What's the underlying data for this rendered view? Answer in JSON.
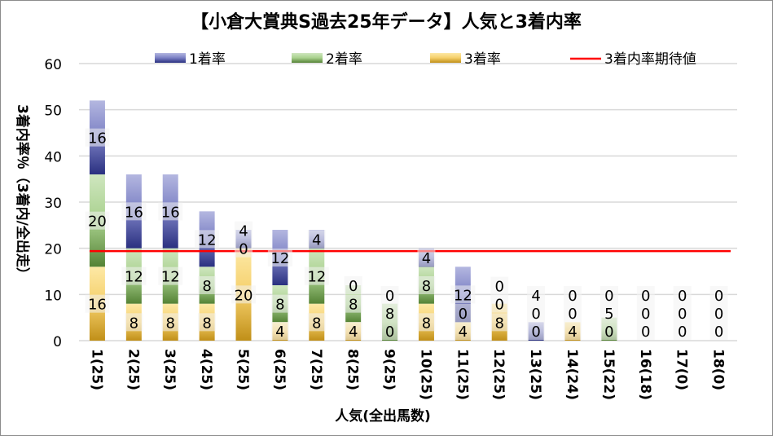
{
  "chart_data": {
    "type": "bar",
    "stacked": true,
    "title": "【小倉大賞典S過去25年データ】人気と3着内率",
    "xlabel": "人気(全出馬数)",
    "ylabel": "3着内率％（3着内/全出走）",
    "ylim": [
      0,
      60
    ],
    "yticks": [
      0,
      10,
      20,
      30,
      40,
      50,
      60
    ],
    "grid": true,
    "legend_position": "top",
    "categories": [
      "1(25)",
      "2(25)",
      "3(25)",
      "4(25)",
      "5(25)",
      "6(25)",
      "7(25)",
      "8(25)",
      "9(25)",
      "10(25)",
      "11(25)",
      "12(25)",
      "13(25)",
      "14(24)",
      "15(22)",
      "16(18)",
      "17(0)",
      "18(0)"
    ],
    "series": [
      {
        "name": "3着率",
        "values": [
          16,
          8,
          8,
          8,
          20,
          4,
          8,
          4,
          0,
          8,
          4,
          8,
          0,
          4,
          0,
          0,
          0,
          0
        ],
        "color": "#e0b040"
      },
      {
        "name": "2着率",
        "values": [
          20,
          12,
          12,
          8,
          0,
          8,
          12,
          8,
          8,
          8,
          0,
          0,
          0,
          0,
          5,
          0,
          0,
          0
        ],
        "color": "#70a050"
      },
      {
        "name": "1着率",
        "values": [
          16,
          16,
          16,
          12,
          4,
          12,
          4,
          0,
          0,
          4,
          12,
          0,
          4,
          0,
          0,
          0,
          0,
          0
        ],
        "color": "#4a52a0"
      }
    ],
    "reference_line": {
      "name": "3着内率期待値",
      "value": 19.4,
      "color": "#ff0000"
    }
  }
}
